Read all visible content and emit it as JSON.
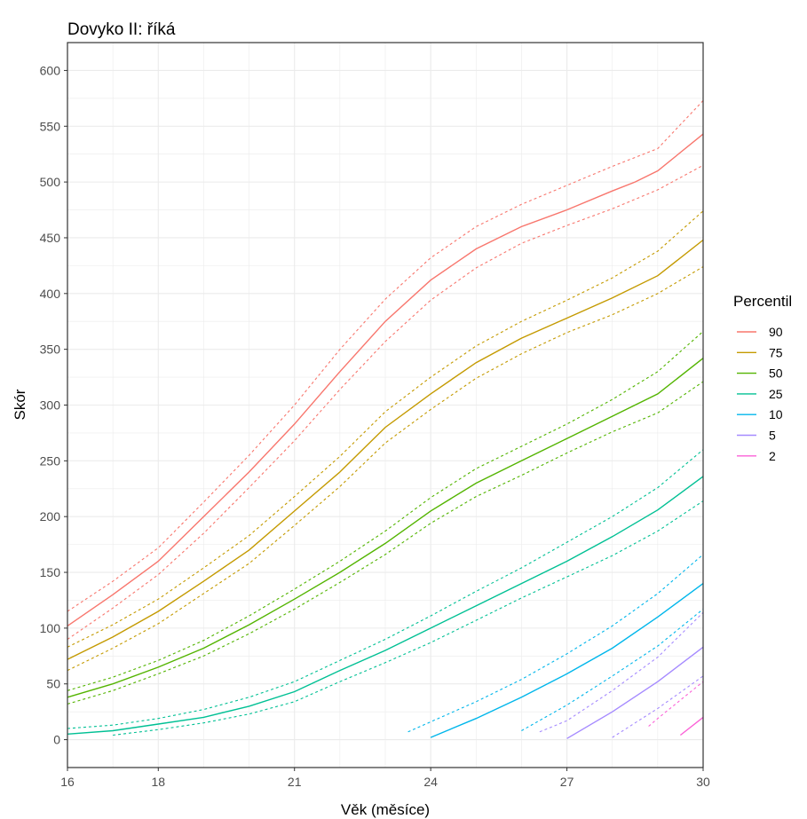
{
  "chart_data": {
    "type": "line",
    "title": "Dovyko II: říká",
    "xlabel": "Věk (měsíce)",
    "ylabel": "Skór",
    "xlim": [
      16,
      30
    ],
    "ylim": [
      -25,
      625
    ],
    "x_ticks": [
      16,
      18,
      21,
      24,
      27,
      30
    ],
    "x_tick_labels": [
      "16",
      "18",
      "21",
      "24",
      "27",
      "30"
    ],
    "y_ticks": [
      0,
      50,
      100,
      150,
      200,
      250,
      300,
      350,
      400,
      450,
      500,
      550,
      600
    ],
    "y_tick_labels": [
      "0",
      "50",
      "100",
      "150",
      "200",
      "250",
      "300",
      "350",
      "400",
      "450",
      "500",
      "550",
      "600"
    ],
    "grid": true,
    "legend": {
      "title": "Percentil",
      "position": "right"
    },
    "series": [
      {
        "name": "90",
        "color": "#F8766D",
        "x": [
          16,
          17,
          18,
          19,
          20,
          21,
          22,
          23,
          24,
          25,
          26,
          27,
          28,
          28.5,
          29,
          30
        ],
        "y": [
          102,
          130,
          160,
          200,
          240,
          283,
          330,
          375,
          412,
          440,
          460,
          475,
          492,
          500,
          510,
          543
        ],
        "band": {
          "x": [
            16,
            17,
            18,
            19,
            20,
            21,
            22,
            23,
            24,
            25,
            26,
            27,
            28,
            29,
            30
          ],
          "upper": [
            115,
            142,
            172,
            213,
            255,
            300,
            350,
            395,
            432,
            460,
            480,
            497,
            514,
            530,
            573
          ],
          "lower": [
            90,
            118,
            148,
            185,
            226,
            268,
            314,
            357,
            394,
            423,
            445,
            461,
            476,
            493,
            515
          ]
        }
      },
      {
        "name": "75",
        "color": "#C49A00",
        "x": [
          16,
          17,
          18,
          19,
          20,
          21,
          22,
          23,
          24,
          25,
          26,
          27,
          28,
          29,
          30
        ],
        "y": [
          72,
          92,
          115,
          142,
          170,
          205,
          240,
          280,
          310,
          338,
          360,
          378,
          396,
          416,
          448
        ],
        "band": {
          "x": [
            16,
            17,
            18,
            19,
            20,
            21,
            22,
            23,
            24,
            25,
            26,
            27,
            28,
            29,
            30
          ],
          "upper": [
            83,
            103,
            126,
            154,
            183,
            218,
            254,
            294,
            325,
            353,
            375,
            394,
            414,
            438,
            474
          ],
          "lower": [
            62,
            82,
            104,
            131,
            158,
            192,
            227,
            266,
            296,
            324,
            346,
            365,
            381,
            400,
            424
          ]
        }
      },
      {
        "name": "50",
        "color": "#53B400",
        "x": [
          16,
          17,
          18,
          19,
          20,
          21,
          22,
          23,
          24,
          25,
          26,
          27,
          28,
          29,
          30
        ],
        "y": [
          38,
          50,
          65,
          82,
          103,
          126,
          150,
          176,
          205,
          230,
          250,
          270,
          290,
          310,
          342
        ],
        "band": {
          "x": [
            16,
            17,
            18,
            19,
            20,
            21,
            22,
            23,
            24,
            25,
            26,
            27,
            28,
            29,
            30
          ],
          "upper": [
            44,
            56,
            71,
            89,
            111,
            135,
            160,
            187,
            217,
            243,
            263,
            283,
            305,
            330,
            366
          ],
          "lower": [
            32,
            44,
            59,
            75,
            95,
            117,
            141,
            166,
            194,
            218,
            237,
            257,
            276,
            293,
            321
          ]
        }
      },
      {
        "name": "25",
        "color": "#00C094",
        "x": [
          16,
          17,
          18,
          19,
          20,
          21,
          22,
          23,
          24,
          25,
          26,
          27,
          28,
          29,
          30
        ],
        "y": [
          5,
          8,
          14,
          20,
          30,
          43,
          62,
          80,
          100,
          120,
          140,
          160,
          182,
          206,
          236
        ],
        "band": {
          "x": [
            16,
            17,
            18,
            19,
            20,
            21,
            22,
            23,
            24,
            25,
            26,
            27,
            28,
            29,
            30
          ],
          "upper": [
            10,
            13,
            19,
            27,
            38,
            52,
            71,
            90,
            111,
            133,
            154,
            177,
            200,
            226,
            260
          ],
          "lower": [
            null,
            4,
            9,
            15,
            23,
            34,
            52,
            69,
            87,
            107,
            127,
            146,
            165,
            187,
            214
          ]
        }
      },
      {
        "name": "10",
        "color": "#00B6EB",
        "x": [
          24,
          25,
          26,
          27,
          28,
          29,
          30
        ],
        "y": [
          2,
          19,
          38,
          59,
          82,
          110,
          140
        ],
        "band": {
          "x": [
            23.5,
            24,
            25,
            26,
            27,
            28,
            29,
            30
          ],
          "upper": [
            7,
            16,
            34,
            54,
            77,
            102,
            131,
            166
          ],
          "lower": [
            null,
            null,
            null,
            8,
            31,
            57,
            84,
            117
          ]
        }
      },
      {
        "name": "5",
        "color": "#A58AFF",
        "x": [
          27,
          28,
          29,
          30
        ],
        "y": [
          1,
          25,
          52,
          83
        ],
        "band": {
          "x": [
            26.4,
            27,
            28,
            29,
            30
          ],
          "upper": [
            7,
            17,
            44,
            74,
            114
          ],
          "lower": [
            null,
            null,
            2,
            28,
            57
          ]
        }
      },
      {
        "name": "2",
        "color": "#FB61D7",
        "x": [
          29.5,
          30
        ],
        "y": [
          4,
          20
        ],
        "band": {
          "x": [
            28.8,
            29,
            30
          ],
          "upper": [
            12,
            19,
            52
          ],
          "lower": [
            null,
            null,
            8
          ]
        }
      }
    ]
  }
}
